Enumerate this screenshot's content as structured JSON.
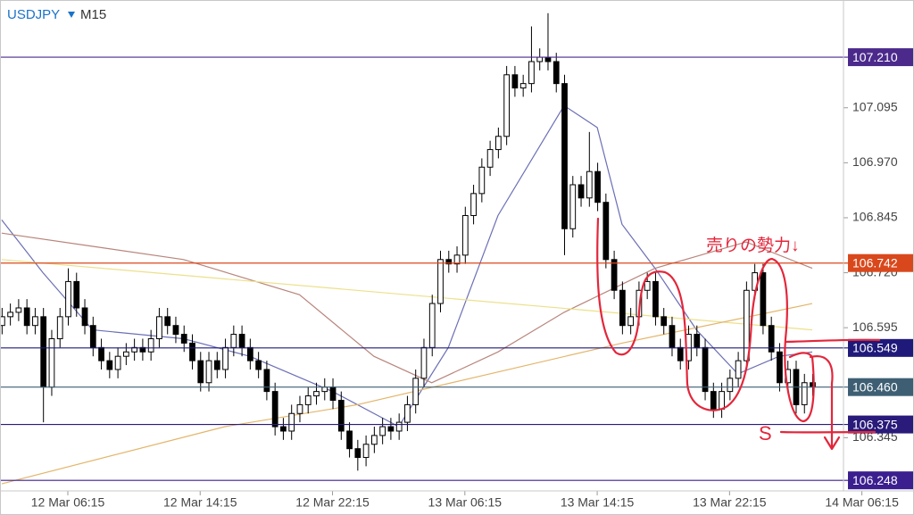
{
  "chart_data": {
    "type": "candlestick",
    "symbol": "USDJPY",
    "timeframe": "M15",
    "xlim": [
      -0.2,
      110.3
    ],
    "ylim": [
      106.224,
      107.34
    ],
    "yticks": [
      107.095,
      {
        "value": 106.97,
        "label": "106.970"
      },
      106.845,
      {
        "value": 106.72,
        "label": "106.720"
      },
      106.595,
      106.345
    ],
    "xticks": [
      {
        "value": 8,
        "label": "12 Mar 06:15"
      },
      {
        "value": 24,
        "label": "12 Mar 14:15"
      },
      {
        "value": 40,
        "label": "12 Mar 22:15"
      },
      {
        "value": 56,
        "label": "13 Mar 06:15"
      },
      {
        "value": 72,
        "label": "13 Mar 14:15"
      },
      {
        "value": 88,
        "label": "13 Mar 22:15"
      },
      {
        "value": 104,
        "label": "14 Mar 06:15"
      }
    ],
    "up_color": "#ffffff",
    "down_color": "#000000",
    "open": [
      106.6,
      106.62,
      106.63,
      106.64,
      106.6,
      106.62,
      106.46,
      106.57,
      106.62,
      106.7,
      106.64,
      106.6,
      106.55,
      106.52,
      106.5,
      106.53,
      106.54,
      106.55,
      106.54,
      106.57,
      106.62,
      106.6,
      106.58,
      106.56,
      106.52,
      106.47,
      106.52,
      106.5,
      106.55,
      106.58,
      106.55,
      106.52,
      106.5,
      106.45,
      106.37,
      106.36,
      106.4,
      106.42,
      106.44,
      106.45,
      106.46,
      106.43,
      106.36,
      106.32,
      106.3,
      106.33,
      106.35,
      106.37,
      106.36,
      106.38,
      106.42,
      106.48,
      106.55,
      106.65,
      106.75,
      106.74,
      106.76,
      106.85,
      106.9,
      106.96,
      107.0,
      107.03,
      107.17,
      107.14,
      107.15,
      107.2,
      107.21,
      107.2,
      107.15,
      106.82,
      106.92,
      106.89,
      106.95,
      106.88,
      106.75,
      106.68,
      106.6,
      106.62,
      106.68,
      106.7,
      106.62,
      106.6,
      106.55,
      106.52,
      106.58,
      106.55,
      106.45,
      106.41,
      106.45,
      106.48,
      106.52,
      106.68,
      106.72,
      106.6,
      106.54,
      106.47,
      106.5,
      106.42,
      106.47
    ],
    "high": [
      106.64,
      106.65,
      106.66,
      106.66,
      106.64,
      106.64,
      106.59,
      106.64,
      106.73,
      106.72,
      106.66,
      106.62,
      106.57,
      106.54,
      106.55,
      106.56,
      106.57,
      106.57,
      106.59,
      106.64,
      106.64,
      106.62,
      106.6,
      106.58,
      106.54,
      106.54,
      106.54,
      106.57,
      106.6,
      106.6,
      106.57,
      106.54,
      106.52,
      106.47,
      106.39,
      106.42,
      106.44,
      106.46,
      106.47,
      106.48,
      106.48,
      106.45,
      106.38,
      106.34,
      106.35,
      106.37,
      106.39,
      106.39,
      106.4,
      106.44,
      106.5,
      106.57,
      106.67,
      106.77,
      106.77,
      106.78,
      106.87,
      106.92,
      106.98,
      107.02,
      107.05,
      107.19,
      107.19,
      107.17,
      107.28,
      107.23,
      107.31,
      107.22,
      107.17,
      106.94,
      106.94,
      107.04,
      106.97,
      106.9,
      106.77,
      106.7,
      106.64,
      106.7,
      106.72,
      106.72,
      106.64,
      106.62,
      106.57,
      106.6,
      106.6,
      106.57,
      106.47,
      106.47,
      106.5,
      106.54,
      106.7,
      106.74,
      106.74,
      106.62,
      106.56,
      106.52,
      106.52,
      106.49,
      106.49
    ],
    "low": [
      106.58,
      106.6,
      106.61,
      106.58,
      106.58,
      106.38,
      106.44,
      106.55,
      106.6,
      106.62,
      106.58,
      106.53,
      106.5,
      106.48,
      106.48,
      106.51,
      106.52,
      106.52,
      106.52,
      106.55,
      106.58,
      106.56,
      106.54,
      106.5,
      106.45,
      106.45,
      106.48,
      106.48,
      106.53,
      106.53,
      106.5,
      106.48,
      106.43,
      106.35,
      106.34,
      106.34,
      106.38,
      106.4,
      106.42,
      106.43,
      106.41,
      106.34,
      106.3,
      106.27,
      106.28,
      106.31,
      106.33,
      106.34,
      106.34,
      106.36,
      106.4,
      106.46,
      106.53,
      106.63,
      106.72,
      106.72,
      106.74,
      106.83,
      106.88,
      106.94,
      106.98,
      107.01,
      107.12,
      107.12,
      107.13,
      107.18,
      107.18,
      107.13,
      106.76,
      106.8,
      106.87,
      106.87,
      106.86,
      106.73,
      106.66,
      106.58,
      106.58,
      106.6,
      106.66,
      106.6,
      106.58,
      106.53,
      106.5,
      106.5,
      106.53,
      106.43,
      106.39,
      106.39,
      106.43,
      106.46,
      106.5,
      106.66,
      106.58,
      106.52,
      106.45,
      106.45,
      106.4,
      106.4,
      106.44
    ],
    "close": [
      106.62,
      106.63,
      106.64,
      106.6,
      106.62,
      106.46,
      106.57,
      106.62,
      106.7,
      106.64,
      106.6,
      106.55,
      106.52,
      106.5,
      106.53,
      106.54,
      106.55,
      106.54,
      106.57,
      106.62,
      106.6,
      106.58,
      106.56,
      106.52,
      106.47,
      106.52,
      106.5,
      106.55,
      106.58,
      106.55,
      106.52,
      106.5,
      106.45,
      106.37,
      106.36,
      106.4,
      106.42,
      106.44,
      106.45,
      106.46,
      106.43,
      106.36,
      106.32,
      106.3,
      106.33,
      106.35,
      106.37,
      106.36,
      106.38,
      106.42,
      106.48,
      106.55,
      106.65,
      106.75,
      106.74,
      106.76,
      106.85,
      106.9,
      106.96,
      107.0,
      107.03,
      107.17,
      107.14,
      107.15,
      107.2,
      107.21,
      107.2,
      107.15,
      106.82,
      106.92,
      106.89,
      106.95,
      106.88,
      106.75,
      106.68,
      106.6,
      106.62,
      106.68,
      106.7,
      106.62,
      106.6,
      106.55,
      106.52,
      106.58,
      106.55,
      106.45,
      106.41,
      106.45,
      106.48,
      106.52,
      106.68,
      106.72,
      106.6,
      106.54,
      106.47,
      106.5,
      106.42,
      106.47,
      106.46
    ],
    "series": [
      {
        "color": "#6b6fb5",
        "x": [
          0,
          5,
          11,
          22,
          30,
          40,
          48,
          54,
          60,
          68,
          72,
          75,
          79,
          84,
          89,
          94,
          98
        ],
        "values": [
          106.84,
          106.72,
          106.59,
          106.57,
          106.53,
          106.45,
          106.37,
          106.55,
          106.85,
          107.1,
          107.05,
          106.83,
          106.73,
          106.59,
          106.49,
          106.53,
          106.54
        ]
      },
      {
        "color": "#b9857c",
        "x": [
          0,
          11,
          22,
          36,
          45,
          52,
          60,
          68,
          79,
          90,
          98
        ],
        "values": [
          106.81,
          106.78,
          106.75,
          106.67,
          106.53,
          106.47,
          106.54,
          106.63,
          106.73,
          106.79,
          106.73
        ]
      },
      {
        "color": "#ece08a",
        "x": [
          0,
          98
        ],
        "values": [
          106.75,
          106.59
        ]
      },
      {
        "color": "#e3b56a",
        "x": [
          0,
          27,
          43,
          59,
          75,
          98
        ],
        "values": [
          106.24,
          106.37,
          106.42,
          106.49,
          106.56,
          106.65
        ]
      }
    ],
    "price_lines": [
      {
        "value": 107.21,
        "label": "107.210",
        "color": "#4b2a8c"
      },
      {
        "value": 106.742,
        "label": "106.742",
        "color": "#d9481c"
      },
      {
        "value": 106.549,
        "label": "106.549",
        "color": "#1f1a7a"
      },
      {
        "value": 106.46,
        "label": "106.460",
        "color": "#3e5f73"
      },
      {
        "value": 106.375,
        "label": "106.375",
        "color": "#2a1a7a"
      },
      {
        "value": 106.248,
        "label": "106.248",
        "color": "#3b1f8f"
      }
    ],
    "annotations": [
      {
        "text": "売りの勢力↓"
      },
      {
        "text": "S"
      }
    ]
  }
}
